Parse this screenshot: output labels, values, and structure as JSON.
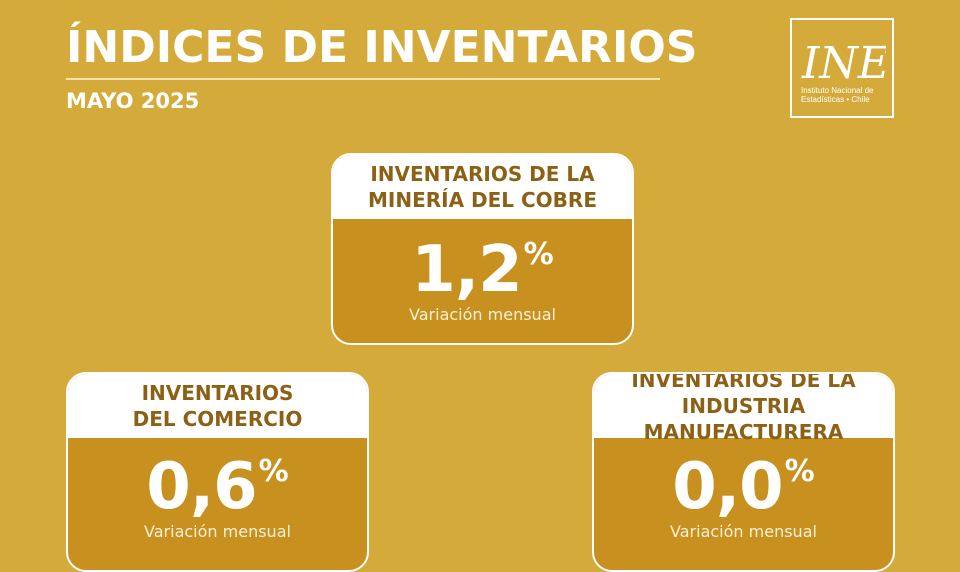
{
  "header": {
    "title": "ÍNDICES DE INVENTARIOS",
    "subtitle": "MAYO 2025"
  },
  "logo": {
    "mark": "INE",
    "text_line1": "Instituto Nacional de",
    "text_line2": "Estadísticas • Chile"
  },
  "cards": [
    {
      "title_line1": "INVENTARIOS DE LA",
      "title_line2": "MINERÍA DEL COBRE",
      "value": "1,2",
      "unit": "%",
      "caption": "Variación mensual"
    },
    {
      "title_line1": "INVENTARIOS",
      "title_line2": "DEL COMERCIO",
      "value": "0,6",
      "unit": "%",
      "caption": "Variación mensual"
    },
    {
      "title_line1": "INVENTARIOS DE LA",
      "title_line2": "INDUSTRIA MANUFACTURERA",
      "value": "0,0",
      "unit": "%",
      "caption": "Variación mensual"
    }
  ],
  "colors": {
    "background": "#d4ab3b",
    "card_body": "#c8901e",
    "card_title": "#8c6116",
    "text": "#ffffff"
  }
}
